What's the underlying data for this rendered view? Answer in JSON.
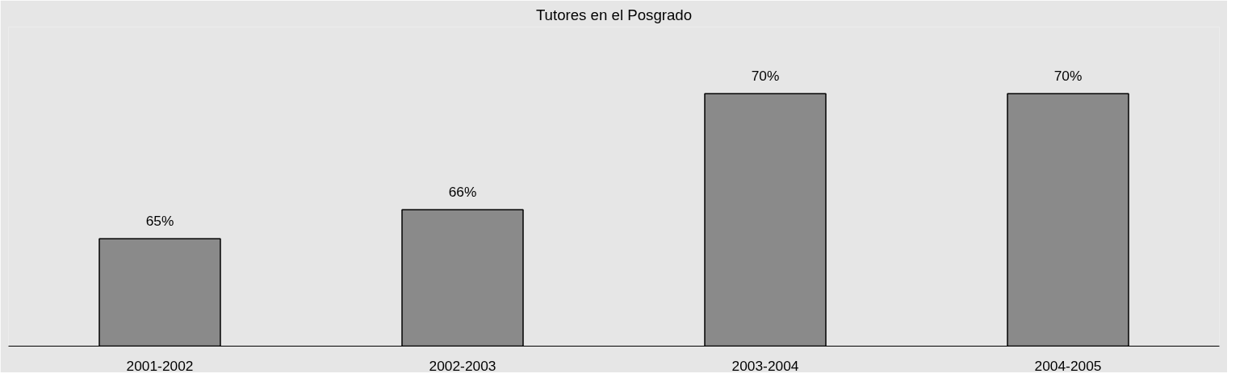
{
  "chart_data": {
    "type": "bar",
    "title": "Tutores en el Posgrado",
    "categories": [
      "2001-2002",
      "2002-2003",
      "2003-2004",
      "2004-2005"
    ],
    "values": [
      65,
      66,
      70,
      70
    ],
    "value_labels": [
      "65%",
      "66%",
      "70%",
      "70%"
    ],
    "color": "#8a8a8a",
    "ylim": [
      61.3,
      72.3
    ],
    "tick_labels": "x"
  }
}
